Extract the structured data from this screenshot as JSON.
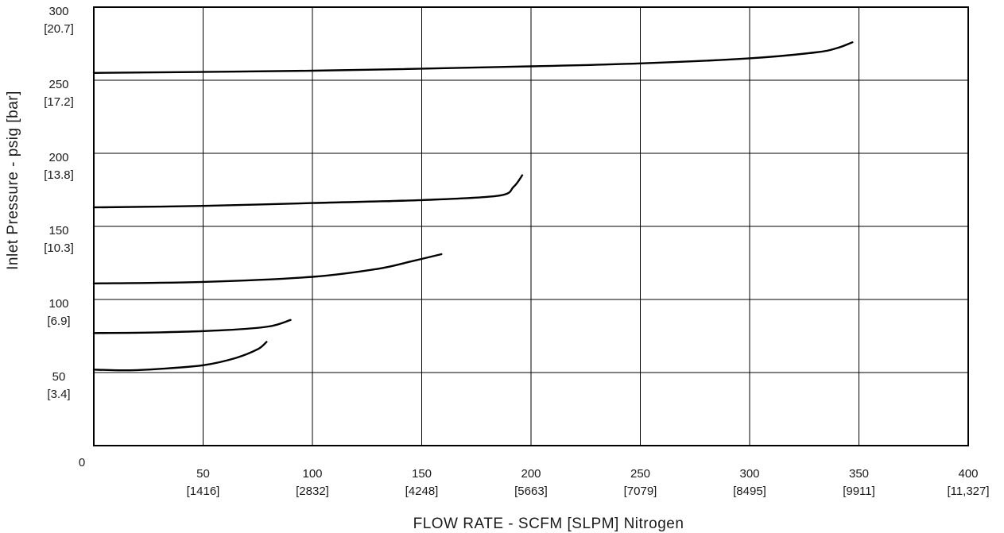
{
  "chart_data": {
    "type": "line",
    "title": "",
    "xlabel": "FLOW RATE - SCFM [SLPM] Nitrogen",
    "ylabel": "Inlet Pressure - psig [bar]",
    "xlim": [
      0,
      400
    ],
    "ylim": [
      0,
      300
    ],
    "grid": true,
    "origin_label": "0",
    "x_ticks": [
      {
        "value": 50,
        "label": "50",
        "sublabel": "[1416]"
      },
      {
        "value": 100,
        "label": "100",
        "sublabel": "[2832]"
      },
      {
        "value": 150,
        "label": "150",
        "sublabel": "[4248]"
      },
      {
        "value": 200,
        "label": "200",
        "sublabel": "[5663]"
      },
      {
        "value": 250,
        "label": "250",
        "sublabel": "[7079]"
      },
      {
        "value": 300,
        "label": "300",
        "sublabel": "[8495]"
      },
      {
        "value": 350,
        "label": "350",
        "sublabel": "[9911]"
      },
      {
        "value": 400,
        "label": "400",
        "sublabel": "[11,327]"
      }
    ],
    "y_ticks": [
      {
        "value": 50,
        "label": "50",
        "sublabel": "[3.4]"
      },
      {
        "value": 100,
        "label": "100",
        "sublabel": "[6.9]"
      },
      {
        "value": 150,
        "label": "150",
        "sublabel": "[10.3]"
      },
      {
        "value": 200,
        "label": "200",
        "sublabel": "[13.8]"
      },
      {
        "value": 250,
        "label": "250",
        "sublabel": "[17.2]"
      },
      {
        "value": 300,
        "label": "300",
        "sublabel": "[20.7]"
      }
    ],
    "series": [
      {
        "points": [
          [
            0,
            52
          ],
          [
            15,
            51.5
          ],
          [
            30,
            52.5
          ],
          [
            50,
            55
          ],
          [
            65,
            60
          ],
          [
            75,
            66
          ],
          [
            79,
            71
          ]
        ]
      },
      {
        "points": [
          [
            0,
            77
          ],
          [
            30,
            77.5
          ],
          [
            60,
            79
          ],
          [
            80,
            81.5
          ],
          [
            90,
            86
          ]
        ]
      },
      {
        "points": [
          [
            0,
            111
          ],
          [
            50,
            112
          ],
          [
            100,
            115.5
          ],
          [
            130,
            121
          ],
          [
            145,
            126
          ],
          [
            159,
            131
          ]
        ]
      },
      {
        "points": [
          [
            0,
            163
          ],
          [
            50,
            164
          ],
          [
            100,
            166
          ],
          [
            150,
            168
          ],
          [
            185,
            171
          ],
          [
            192,
            177
          ],
          [
            196,
            185
          ]
        ]
      },
      {
        "points": [
          [
            0,
            255
          ],
          [
            100,
            256.5
          ],
          [
            200,
            259.5
          ],
          [
            250,
            261.5
          ],
          [
            300,
            265
          ],
          [
            330,
            269
          ],
          [
            340,
            272
          ],
          [
            347,
            276
          ]
        ]
      }
    ]
  }
}
